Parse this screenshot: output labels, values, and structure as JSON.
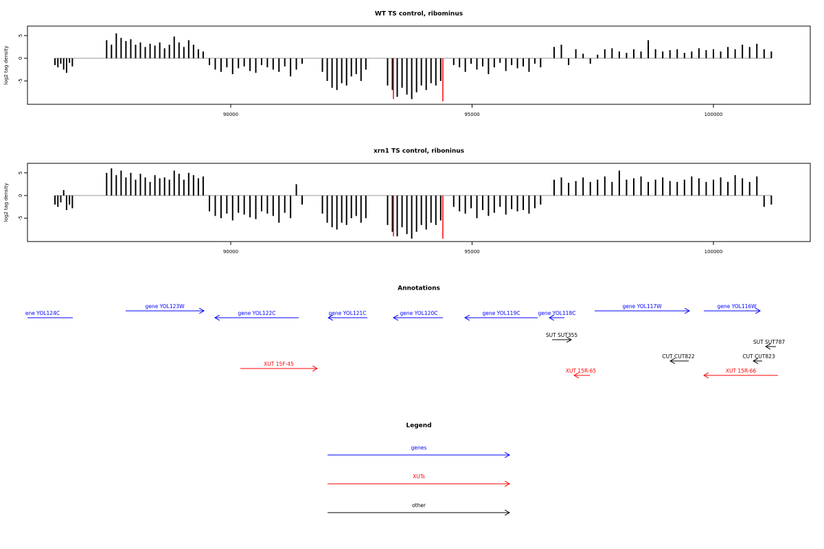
{
  "chart_data": [
    {
      "type": "bar",
      "title": "WT TS control, ribominus",
      "ylabel": "log2 tag density",
      "xlim": [
        85790,
        102006
      ],
      "xticks": [
        90000,
        95000,
        100000
      ],
      "ylim": [
        -10.15,
        7.1
      ],
      "yticks": [
        -5,
        0,
        5
      ],
      "series": [
        {
          "color": "#000000",
          "x": [
            86360,
            86420,
            86480,
            86540,
            86600,
            86660,
            86720,
            87430,
            87530,
            87630,
            87730,
            87830,
            87930,
            88030,
            88130,
            88230,
            88330,
            88430,
            88530,
            88630,
            88730,
            88830,
            88930,
            89030,
            89130,
            89230,
            89330,
            89430,
            89560,
            89680,
            89800,
            89920,
            90040,
            90160,
            90280,
            90400,
            90520,
            90640,
            90760,
            90880,
            91000,
            91120,
            91240,
            91360,
            91480,
            91900,
            92000,
            92100,
            92200,
            92300,
            92400,
            92500,
            92600,
            92700,
            92800,
            93250,
            93350,
            93450,
            93550,
            93650,
            93750,
            93850,
            93950,
            94050,
            94150,
            94250,
            94350,
            94620,
            94740,
            94860,
            94980,
            95100,
            95220,
            95340,
            95460,
            95580,
            95700,
            95820,
            95940,
            96060,
            96180,
            96300,
            96420,
            96700,
            96850,
            97000,
            97150,
            97300,
            97450,
            97600,
            97750,
            97900,
            98050,
            98200,
            98350,
            98500,
            98650,
            98800,
            98950,
            99100,
            99250,
            99400,
            99550,
            99700,
            99850,
            100000,
            100150,
            100300,
            100450,
            100600,
            100750,
            100900,
            101050,
            101200
          ],
          "values": [
            -1.5,
            -2,
            -1.2,
            -2.5,
            -3.2,
            -1,
            -1.8,
            4,
            3,
            5.5,
            4.5,
            3.8,
            4.2,
            3,
            3.5,
            2.5,
            3.2,
            2.8,
            3.5,
            2.2,
            3,
            4.8,
            3.5,
            2.5,
            4,
            3,
            2,
            1.5,
            -1.5,
            -2.5,
            -3,
            -2,
            -3.5,
            -2.2,
            -1.8,
            -2.8,
            -3.2,
            -1.5,
            -2,
            -2.5,
            -3,
            -1.8,
            -4,
            -2.5,
            -1.2,
            -3,
            -5,
            -6.5,
            -7,
            -5.5,
            -6,
            -4,
            -3.5,
            -5,
            -2.5,
            -6,
            -7,
            -8.5,
            -6.5,
            -8,
            -9,
            -7.5,
            -6,
            -7,
            -5.5,
            -6,
            -5,
            -1.5,
            -2,
            -3,
            -1.2,
            -2.5,
            -1.8,
            -3.5,
            -2,
            -1,
            -2.8,
            -1.5,
            -2.2,
            -1.8,
            -3,
            -1.2,
            -2,
            2.5,
            3,
            -1.5,
            2,
            1,
            -1.2,
            0.8,
            2,
            2.2,
            1.5,
            1.2,
            2,
            1.5,
            4,
            2,
            1.5,
            1.8,
            2,
            1.2,
            1.5,
            2.2,
            1.8,
            2,
            1.5,
            2.5,
            2,
            3,
            2.5,
            3.2,
            2,
            1.5
          ]
        },
        {
          "color": "#ff0000",
          "x": [
            93371,
            94395
          ],
          "values": [
            -9,
            -9.5
          ]
        }
      ]
    },
    {
      "type": "bar",
      "title": "xrn1 TS control, riboninus",
      "ylabel": "log2 tag density",
      "xlim": [
        85790,
        102006
      ],
      "xticks": [
        90000,
        95000,
        100000
      ],
      "ylim": [
        -10.15,
        7.1
      ],
      "yticks": [
        -5,
        0,
        5
      ],
      "series": [
        {
          "color": "#000000",
          "x": [
            86360,
            86420,
            86480,
            86540,
            86600,
            86660,
            86720,
            87430,
            87530,
            87630,
            87730,
            87830,
            87930,
            88030,
            88130,
            88230,
            88330,
            88430,
            88530,
            88630,
            88730,
            88830,
            88930,
            89030,
            89130,
            89230,
            89330,
            89430,
            89560,
            89680,
            89800,
            89920,
            90040,
            90160,
            90280,
            90400,
            90520,
            90640,
            90760,
            90880,
            91000,
            91120,
            91240,
            91360,
            91480,
            91900,
            92000,
            92100,
            92200,
            92300,
            92400,
            92500,
            92600,
            92700,
            92800,
            93250,
            93350,
            93450,
            93550,
            93650,
            93750,
            93850,
            93950,
            94050,
            94150,
            94250,
            94350,
            94620,
            94740,
            94860,
            94980,
            95100,
            95220,
            95340,
            95460,
            95580,
            95700,
            95820,
            95940,
            96060,
            96180,
            96300,
            96420,
            96700,
            96850,
            97000,
            97150,
            97300,
            97450,
            97600,
            97750,
            97900,
            98050,
            98200,
            98350,
            98500,
            98650,
            98800,
            98950,
            99100,
            99250,
            99400,
            99550,
            99700,
            99850,
            100000,
            100150,
            100300,
            100450,
            100600,
            100750,
            100900,
            101050,
            101200
          ],
          "values": [
            -2,
            -2.5,
            -1.5,
            1.2,
            -3.2,
            -2,
            -2.8,
            5,
            6,
            4.5,
            5.5,
            4,
            5,
            3.5,
            4.8,
            4,
            3,
            4.5,
            3.8,
            4,
            3.5,
            5.5,
            4.8,
            3.5,
            5,
            4.5,
            3.8,
            4.2,
            -3.5,
            -4.5,
            -5,
            -4,
            -5.5,
            -3.8,
            -4.2,
            -4.8,
            -5.2,
            -3.5,
            -4,
            -4.5,
            -6,
            -3.8,
            -5,
            2.5,
            -2,
            -4,
            -6,
            -7,
            -7.5,
            -6,
            -6.5,
            -5,
            -4.5,
            -6,
            -5,
            -6.5,
            -8,
            -9,
            -7,
            -8.5,
            -9.5,
            -8,
            -6.5,
            -7.5,
            -6,
            -6.5,
            -5.5,
            -2.5,
            -3.5,
            -4,
            -2.8,
            -5,
            -3.2,
            -4.5,
            -3.8,
            -2.5,
            -4.2,
            -3,
            -3.5,
            -3.2,
            -4,
            -2.8,
            -2,
            3.5,
            4,
            2.8,
            3.2,
            4,
            3,
            3.5,
            4.2,
            3,
            5.5,
            3.5,
            3.8,
            4.2,
            3,
            3.5,
            4,
            3.2,
            3,
            3.5,
            4.2,
            3.8,
            3,
            3.5,
            4,
            3,
            4.5,
            3.8,
            3,
            4.2,
            -2.5,
            -2
          ]
        },
        {
          "color": "#ff0000",
          "x": [
            93371,
            94395
          ],
          "values": [
            -9,
            -9.5
          ]
        }
      ]
    }
  ],
  "annotations": {
    "title": "Annotations",
    "features": [
      {
        "label": "ene YOL124C",
        "color": "#0000ff"
      },
      {
        "label": "gene YOL123W",
        "color": "#0000ff"
      },
      {
        "label": "gene YOL122C",
        "color": "#0000ff"
      },
      {
        "label": "gene YOL121C",
        "color": "#0000ff"
      },
      {
        "label": "gene YOL120C",
        "color": "#0000ff"
      },
      {
        "label": "gene YOL119C",
        "color": "#0000ff"
      },
      {
        "label": "gene YOL118C",
        "color": "#0000ff"
      },
      {
        "label": "gene YOL117W",
        "color": "#0000ff"
      },
      {
        "label": "gene YOL116W",
        "color": "#0000ff"
      },
      {
        "label": "SUT SUT355",
        "color": "#000000"
      },
      {
        "label": "SUT SUT787",
        "color": "#000000"
      },
      {
        "label": "CUT CUT822",
        "color": "#000000"
      },
      {
        "label": "CUT CUT823",
        "color": "#000000"
      },
      {
        "label": "XUT 15F-45",
        "color": "#ff0000"
      },
      {
        "label": "XUT 15R-65",
        "color": "#ff0000"
      },
      {
        "label": "XUT 15R-66",
        "color": "#ff0000"
      }
    ]
  },
  "legend": {
    "title": "Legend",
    "entries": [
      {
        "label": "genes",
        "color": "#0000ff"
      },
      {
        "label": "XUTs",
        "color": "#ff0000"
      },
      {
        "label": "other",
        "color": "#000000"
      }
    ]
  }
}
